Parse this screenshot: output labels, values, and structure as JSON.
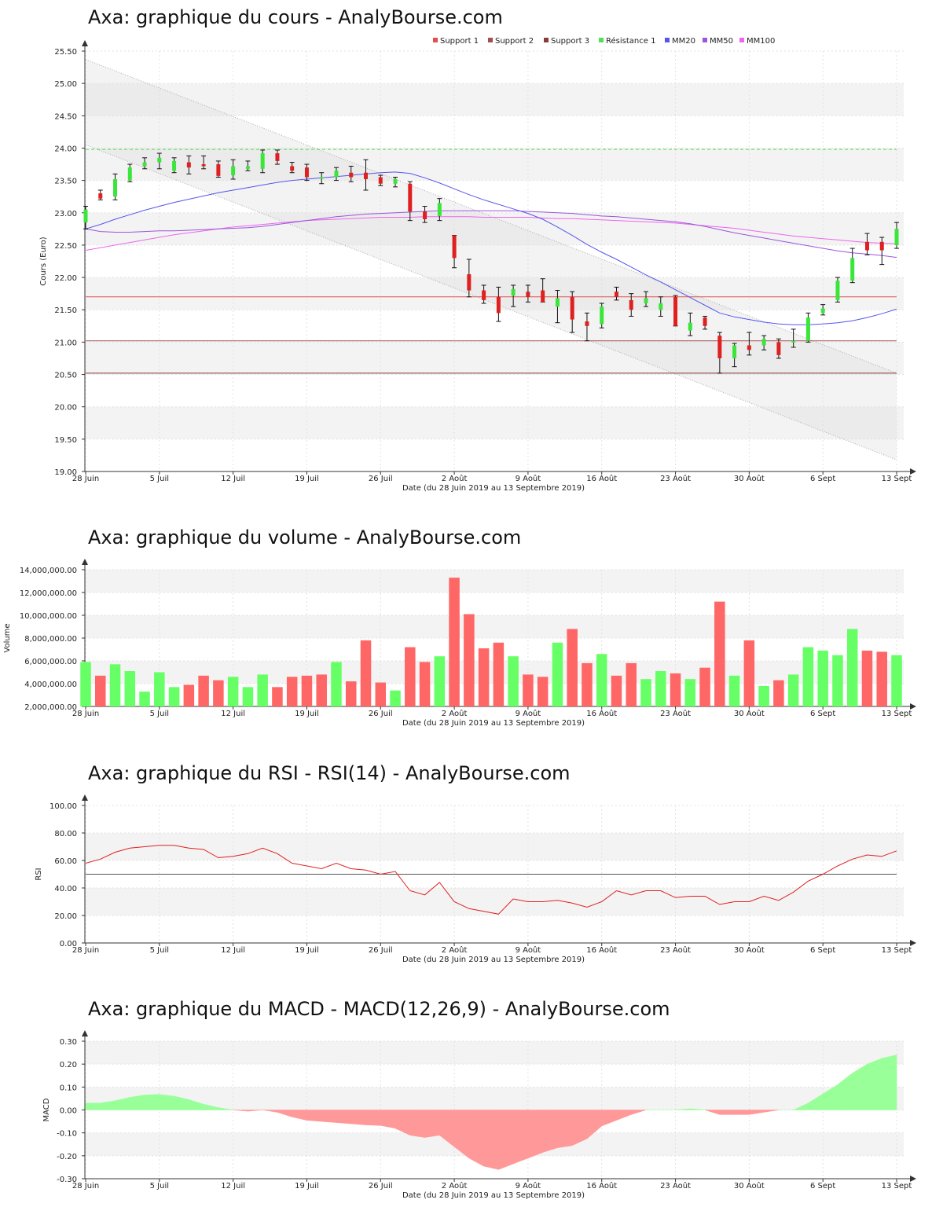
{
  "titles": {
    "cours": "Axa: graphique du cours - AnalyBourse.com",
    "volume": "Axa: graphique du volume - AnalyBourse.com",
    "rsi": "Axa: graphique du RSI - RSI(14) - AnalyBourse.com",
    "macd": "Axa: graphique du MACD - MACD(12,26,9) - AnalyBourse.com"
  },
  "colors": {
    "up": "#39e639",
    "down": "#e02020",
    "volume_up": "#66ff66",
    "volume_down": "#ff6666",
    "support1": "#e05050",
    "support2": "#a05050",
    "support3": "#8b3a3a",
    "resistance1": "#55dd55",
    "mm20": "#5555ee",
    "mm50": "#9955dd",
    "mm100": "#ee66ee",
    "rsi_line": "#e02020",
    "macd_pos": "#99ff99",
    "macd_neg": "#ff9999"
  },
  "chart_data": [
    {
      "id": "cours",
      "type": "candlestick",
      "title": "Axa: graphique du cours - AnalyBourse.com",
      "xlabel": "Date (du 28 Juin 2019 au 13 Septembre 2019)",
      "ylabel": "Cours (Euro)",
      "ylim": [
        19.0,
        25.5
      ],
      "yticks": [
        "19.00",
        "19.50",
        "20.00",
        "20.50",
        "21.00",
        "21.50",
        "22.00",
        "22.50",
        "23.00",
        "23.50",
        "24.00",
        "24.50",
        "25.00",
        "25.50"
      ],
      "xticks": [
        {
          "i": 0,
          "label": "28 Juin"
        },
        {
          "i": 5,
          "label": "5 Juil"
        },
        {
          "i": 10,
          "label": "12 Juil"
        },
        {
          "i": 15,
          "label": "19 Juil"
        },
        {
          "i": 20,
          "label": "26 Juil"
        },
        {
          "i": 25,
          "label": "2 Août"
        },
        {
          "i": 30,
          "label": "9 Août"
        },
        {
          "i": 35,
          "label": "16 Août"
        },
        {
          "i": 40,
          "label": "23 Août"
        },
        {
          "i": 45,
          "label": "30 Août"
        },
        {
          "i": 50,
          "label": "6 Sept"
        },
        {
          "i": 55,
          "label": "13 Sept"
        }
      ],
      "legend": [
        "Support 1",
        "Support 2",
        "Support 3",
        "Résistance 1",
        "MM20",
        "MM50",
        "MM100"
      ],
      "levels": {
        "support1": 21.7,
        "support2": 21.02,
        "support3": 20.52,
        "resistance1": 23.98
      },
      "channel": {
        "upper": [
          25.37,
          20.52
        ],
        "lower": [
          24.05,
          19.18
        ]
      },
      "candles": [
        {
          "o": 22.85,
          "h": 23.1,
          "l": 22.75,
          "c": 23.05
        },
        {
          "o": 23.3,
          "h": 23.35,
          "l": 23.2,
          "c": 23.22
        },
        {
          "o": 23.25,
          "h": 23.6,
          "l": 23.2,
          "c": 23.52
        },
        {
          "o": 23.5,
          "h": 23.75,
          "l": 23.48,
          "c": 23.7
        },
        {
          "o": 23.72,
          "h": 23.85,
          "l": 23.68,
          "c": 23.78
        },
        {
          "o": 23.78,
          "h": 23.92,
          "l": 23.68,
          "c": 23.85
        },
        {
          "o": 23.65,
          "h": 23.85,
          "l": 23.62,
          "c": 23.8
        },
        {
          "o": 23.78,
          "h": 23.88,
          "l": 23.6,
          "c": 23.7
        },
        {
          "o": 23.75,
          "h": 23.88,
          "l": 23.68,
          "c": 23.72
        },
        {
          "o": 23.75,
          "h": 23.8,
          "l": 23.55,
          "c": 23.57
        },
        {
          "o": 23.58,
          "h": 23.82,
          "l": 23.52,
          "c": 23.72
        },
        {
          "o": 23.68,
          "h": 23.8,
          "l": 23.65,
          "c": 23.72
        },
        {
          "o": 23.68,
          "h": 23.97,
          "l": 23.62,
          "c": 23.92
        },
        {
          "o": 23.92,
          "h": 23.97,
          "l": 23.75,
          "c": 23.8
        },
        {
          "o": 23.72,
          "h": 23.78,
          "l": 23.62,
          "c": 23.65
        },
        {
          "o": 23.7,
          "h": 23.75,
          "l": 23.5,
          "c": 23.55
        },
        {
          "o": 23.55,
          "h": 23.62,
          "l": 23.45,
          "c": 23.55
        },
        {
          "o": 23.55,
          "h": 23.7,
          "l": 23.5,
          "c": 23.65
        },
        {
          "o": 23.62,
          "h": 23.72,
          "l": 23.48,
          "c": 23.55
        },
        {
          "o": 23.62,
          "h": 23.82,
          "l": 23.35,
          "c": 23.52
        },
        {
          "o": 23.55,
          "h": 23.58,
          "l": 23.42,
          "c": 23.45
        },
        {
          "o": 23.45,
          "h": 23.55,
          "l": 23.4,
          "c": 23.52
        },
        {
          "o": 23.45,
          "h": 23.48,
          "l": 22.88,
          "c": 23.02
        },
        {
          "o": 23.02,
          "h": 23.1,
          "l": 22.85,
          "c": 22.9
        },
        {
          "o": 22.95,
          "h": 23.22,
          "l": 22.88,
          "c": 23.15
        },
        {
          "o": 22.65,
          "h": 22.65,
          "l": 22.15,
          "c": 22.3
        },
        {
          "o": 22.05,
          "h": 22.28,
          "l": 21.7,
          "c": 21.8
        },
        {
          "o": 21.8,
          "h": 21.88,
          "l": 21.6,
          "c": 21.65
        },
        {
          "o": 21.7,
          "h": 21.85,
          "l": 21.32,
          "c": 21.45
        },
        {
          "o": 21.72,
          "h": 21.88,
          "l": 21.55,
          "c": 21.82
        },
        {
          "o": 21.78,
          "h": 21.88,
          "l": 21.62,
          "c": 21.7
        },
        {
          "o": 21.8,
          "h": 21.98,
          "l": 21.62,
          "c": 21.62
        },
        {
          "o": 21.55,
          "h": 21.8,
          "l": 21.3,
          "c": 21.68
        },
        {
          "o": 21.7,
          "h": 21.78,
          "l": 21.15,
          "c": 21.35
        },
        {
          "o": 21.32,
          "h": 21.45,
          "l": 21.02,
          "c": 21.25
        },
        {
          "o": 21.28,
          "h": 21.6,
          "l": 21.22,
          "c": 21.55
        },
        {
          "o": 21.78,
          "h": 21.85,
          "l": 21.65,
          "c": 21.7
        },
        {
          "o": 21.65,
          "h": 21.75,
          "l": 21.4,
          "c": 21.5
        },
        {
          "o": 21.6,
          "h": 21.78,
          "l": 21.55,
          "c": 21.68
        },
        {
          "o": 21.5,
          "h": 21.7,
          "l": 21.4,
          "c": 21.6
        },
        {
          "o": 21.7,
          "h": 21.72,
          "l": 21.25,
          "c": 21.25
        },
        {
          "o": 21.18,
          "h": 21.45,
          "l": 21.1,
          "c": 21.3
        },
        {
          "o": 21.38,
          "h": 21.4,
          "l": 21.2,
          "c": 21.25
        },
        {
          "o": 21.1,
          "h": 21.15,
          "l": 20.52,
          "c": 20.75
        },
        {
          "o": 20.75,
          "h": 20.98,
          "l": 20.62,
          "c": 20.95
        },
        {
          "o": 20.95,
          "h": 21.15,
          "l": 20.8,
          "c": 20.88
        },
        {
          "o": 20.95,
          "h": 21.1,
          "l": 20.88,
          "c": 21.05
        },
        {
          "o": 21.0,
          "h": 21.05,
          "l": 20.75,
          "c": 20.8
        },
        {
          "o": 21.0,
          "h": 21.2,
          "l": 20.92,
          "c": 21.02
        },
        {
          "o": 21.02,
          "h": 21.45,
          "l": 21.0,
          "c": 21.38
        },
        {
          "o": 21.45,
          "h": 21.58,
          "l": 21.42,
          "c": 21.52
        },
        {
          "o": 21.65,
          "h": 22.0,
          "l": 21.62,
          "c": 21.95
        },
        {
          "o": 21.95,
          "h": 22.45,
          "l": 21.92,
          "c": 22.3
        },
        {
          "o": 22.55,
          "h": 22.68,
          "l": 22.35,
          "c": 22.42
        },
        {
          "o": 22.55,
          "h": 22.62,
          "l": 22.2,
          "c": 22.42
        },
        {
          "o": 22.5,
          "h": 22.85,
          "l": 22.45,
          "c": 22.75
        }
      ],
      "mm20": [
        22.75,
        22.82,
        22.9,
        22.97,
        23.04,
        23.1,
        23.16,
        23.21,
        23.26,
        23.31,
        23.35,
        23.39,
        23.43,
        23.47,
        23.5,
        23.52,
        23.54,
        23.56,
        23.58,
        23.6,
        23.62,
        23.63,
        23.61,
        23.54,
        23.46,
        23.37,
        23.28,
        23.2,
        23.13,
        23.06,
        22.99,
        22.9,
        22.78,
        22.65,
        22.51,
        22.39,
        22.28,
        22.16,
        22.04,
        21.93,
        21.81,
        21.69,
        21.57,
        21.45,
        21.39,
        21.35,
        21.31,
        21.28,
        21.27,
        21.27,
        21.28,
        21.3,
        21.33,
        21.38,
        21.44,
        21.51
      ],
      "mm50": [
        22.75,
        22.71,
        22.7,
        22.7,
        22.71,
        22.72,
        22.72,
        22.73,
        22.74,
        22.75,
        22.76,
        22.77,
        22.79,
        22.82,
        22.85,
        22.88,
        22.91,
        22.94,
        22.96,
        22.98,
        22.99,
        23.0,
        23.01,
        23.02,
        23.03,
        23.03,
        23.03,
        23.03,
        23.03,
        23.03,
        23.02,
        23.01,
        23.0,
        22.99,
        22.97,
        22.95,
        22.94,
        22.92,
        22.9,
        22.88,
        22.86,
        22.83,
        22.79,
        22.74,
        22.69,
        22.65,
        22.61,
        22.57,
        22.53,
        22.49,
        22.45,
        22.41,
        22.38,
        22.36,
        22.34,
        22.31
      ],
      "mm100": [
        22.42,
        22.46,
        22.5,
        22.54,
        22.58,
        22.62,
        22.66,
        22.69,
        22.72,
        22.75,
        22.78,
        22.8,
        22.82,
        22.84,
        22.86,
        22.88,
        22.89,
        22.9,
        22.91,
        22.92,
        22.93,
        22.93,
        22.93,
        22.94,
        22.94,
        22.94,
        22.94,
        22.93,
        22.93,
        22.93,
        22.93,
        22.92,
        22.91,
        22.91,
        22.9,
        22.89,
        22.88,
        22.87,
        22.86,
        22.85,
        22.84,
        22.82,
        22.8,
        22.78,
        22.76,
        22.73,
        22.7,
        22.67,
        22.64,
        22.62,
        22.6,
        22.58,
        22.56,
        22.54,
        22.53,
        22.52
      ]
    },
    {
      "id": "volume",
      "type": "bar",
      "title": "Axa: graphique du volume - AnalyBourse.com",
      "xlabel": "Date (du 28 Juin 2019 au 13 Septembre 2019)",
      "ylabel": "Volume",
      "ylim": [
        2000000,
        14000000
      ],
      "yticks": [
        "2,000,000.00",
        "4,000,000.00",
        "6,000,000.00",
        "8,000,000.00",
        "10,000,000.00",
        "12,000,000.00",
        "14,000,000.00"
      ],
      "xticks": [
        {
          "i": 0,
          "label": "28 Juin"
        },
        {
          "i": 5,
          "label": "5 Juil"
        },
        {
          "i": 10,
          "label": "12 Juil"
        },
        {
          "i": 15,
          "label": "19 Juil"
        },
        {
          "i": 20,
          "label": "26 Juil"
        },
        {
          "i": 25,
          "label": "2 Août"
        },
        {
          "i": 30,
          "label": "9 Août"
        },
        {
          "i": 35,
          "label": "16 Août"
        },
        {
          "i": 40,
          "label": "23 Août"
        },
        {
          "i": 45,
          "label": "30 Août"
        },
        {
          "i": 50,
          "label": "6 Sept"
        },
        {
          "i": 55,
          "label": "13 Sept"
        }
      ],
      "values": [
        5900000,
        4700000,
        5700000,
        5100000,
        3300000,
        5000000,
        3700000,
        3900000,
        4700000,
        4300000,
        4600000,
        3700000,
        4800000,
        3700000,
        4600000,
        4700000,
        4800000,
        5900000,
        4200000,
        7800000,
        4100000,
        3400000,
        7200000,
        5900000,
        6400000,
        13300000,
        10100000,
        7100000,
        7600000,
        6400000,
        4800000,
        4600000,
        7600000,
        8800000,
        5800000,
        6600000,
        4700000,
        5800000,
        4400000,
        5100000,
        4900000,
        4400000,
        5400000,
        11200000,
        4700000,
        7800000,
        3800000,
        4300000,
        4800000,
        7200000,
        6900000,
        6500000,
        8800000,
        6900000,
        6800000,
        6500000
      ],
      "up": [
        true,
        false,
        true,
        true,
        true,
        true,
        true,
        false,
        false,
        false,
        true,
        true,
        true,
        false,
        false,
        false,
        false,
        true,
        false,
        false,
        false,
        true,
        false,
        false,
        true,
        false,
        false,
        false,
        false,
        true,
        false,
        false,
        true,
        false,
        false,
        true,
        false,
        false,
        true,
        true,
        false,
        true,
        false,
        false,
        true,
        false,
        true,
        false,
        true,
        true,
        true,
        true,
        true,
        false,
        false,
        true
      ]
    },
    {
      "id": "rsi",
      "type": "line",
      "title": "Axa: graphique du RSI - RSI(14) - AnalyBourse.com",
      "xlabel": "Date (du 28 Juin 2019 au 13 Septembre 2019)",
      "ylabel": "RSI",
      "ylim": [
        0,
        100
      ],
      "yticks": [
        "0.00",
        "20.00",
        "40.00",
        "60.00",
        "80.00",
        "100.00"
      ],
      "xticks": [
        {
          "i": 0,
          "label": "28 Juin"
        },
        {
          "i": 5,
          "label": "5 Juil"
        },
        {
          "i": 10,
          "label": "12 Juil"
        },
        {
          "i": 15,
          "label": "19 Juil"
        },
        {
          "i": 20,
          "label": "26 Juil"
        },
        {
          "i": 25,
          "label": "2 Août"
        },
        {
          "i": 30,
          "label": "9 Août"
        },
        {
          "i": 35,
          "label": "16 Août"
        },
        {
          "i": 40,
          "label": "23 Août"
        },
        {
          "i": 45,
          "label": "30 Août"
        },
        {
          "i": 50,
          "label": "6 Sept"
        },
        {
          "i": 55,
          "label": "13 Sept"
        }
      ],
      "reference": 50,
      "values": [
        58,
        61,
        66,
        69,
        70,
        71,
        71,
        69,
        68,
        62,
        63,
        65,
        69,
        65,
        58,
        56,
        54,
        58,
        54,
        53,
        50,
        52,
        38,
        35,
        44,
        30,
        25,
        23,
        21,
        32,
        30,
        30,
        31,
        29,
        26,
        30,
        38,
        35,
        38,
        38,
        33,
        34,
        34,
        28,
        30,
        30,
        34,
        31,
        37,
        45,
        50,
        56,
        61,
        64,
        63,
        67
      ]
    },
    {
      "id": "macd",
      "type": "area",
      "title": "Axa: graphique du MACD - MACD(12,26,9) - AnalyBourse.com",
      "xlabel": "Date (du 28 Juin 2019 au 13 Septembre 2019)",
      "ylabel": "MACD",
      "ylim": [
        -0.3,
        0.3
      ],
      "yticks": [
        "-0.30",
        "-0.20",
        "-0.10",
        "0.00",
        "0.10",
        "0.20",
        "0.30"
      ],
      "xticks": [
        {
          "i": 0,
          "label": "28 Juin"
        },
        {
          "i": 5,
          "label": "5 Juil"
        },
        {
          "i": 10,
          "label": "12 Juil"
        },
        {
          "i": 15,
          "label": "19 Juil"
        },
        {
          "i": 20,
          "label": "26 Juil"
        },
        {
          "i": 25,
          "label": "2 Août"
        },
        {
          "i": 30,
          "label": "9 Août"
        },
        {
          "i": 35,
          "label": "16 Août"
        },
        {
          "i": 40,
          "label": "23 Août"
        },
        {
          "i": 45,
          "label": "30 Août"
        },
        {
          "i": 50,
          "label": "6 Sept"
        },
        {
          "i": 55,
          "label": "13 Sept"
        }
      ],
      "values": [
        0.03,
        0.03,
        0.04,
        0.055,
        0.065,
        0.068,
        0.06,
        0.045,
        0.025,
        0.01,
        0.0,
        -0.005,
        0.0,
        -0.01,
        -0.03,
        -0.045,
        -0.05,
        -0.055,
        -0.06,
        -0.065,
        -0.068,
        -0.08,
        -0.11,
        -0.12,
        -0.11,
        -0.16,
        -0.21,
        -0.245,
        -0.26,
        -0.235,
        -0.21,
        -0.185,
        -0.165,
        -0.155,
        -0.125,
        -0.07,
        -0.045,
        -0.02,
        0.0,
        0.0,
        0.0,
        0.005,
        0.0,
        -0.02,
        -0.02,
        -0.02,
        -0.01,
        0.0,
        0.0,
        0.03,
        0.07,
        0.11,
        0.16,
        0.2,
        0.225,
        0.24
      ]
    }
  ]
}
